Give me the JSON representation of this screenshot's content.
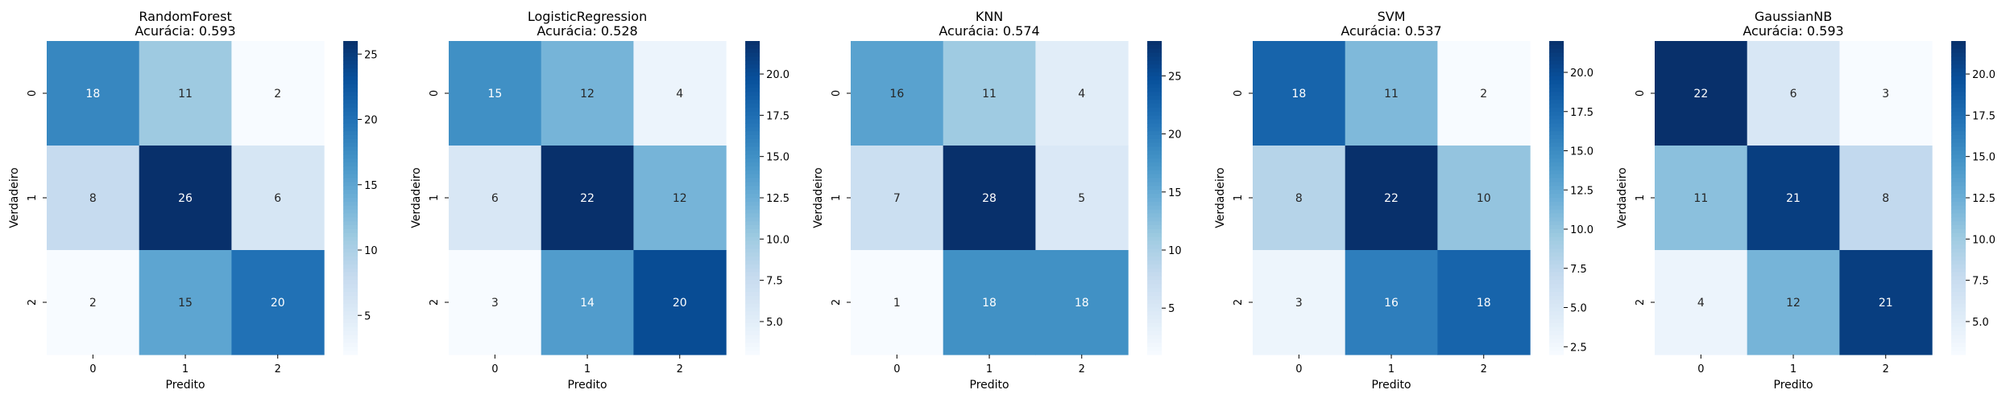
{
  "chart_data": [
    {
      "type": "heatmap",
      "title": "RandomForest",
      "subtitle": "Acurácia: 0.593",
      "xlabel": "Predito",
      "ylabel": "Verdadeiro",
      "x_categories": [
        "0",
        "1",
        "2"
      ],
      "y_categories": [
        "0",
        "1",
        "2"
      ],
      "matrix": [
        [
          18,
          11,
          2
        ],
        [
          8,
          26,
          6
        ],
        [
          2,
          15,
          20
        ]
      ],
      "colormap": "Blues",
      "vmin": 2,
      "vmax": 26,
      "colorbar_ticks": [
        5,
        10,
        15,
        20,
        25
      ],
      "colorbar_tick_labels": [
        "5",
        "10",
        "15",
        "20",
        "25"
      ]
    },
    {
      "type": "heatmap",
      "title": "LogisticRegression",
      "subtitle": "Acurácia: 0.528",
      "xlabel": "Predito",
      "ylabel": "Verdadeiro",
      "x_categories": [
        "0",
        "1",
        "2"
      ],
      "y_categories": [
        "0",
        "1",
        "2"
      ],
      "matrix": [
        [
          15,
          12,
          4
        ],
        [
          6,
          22,
          12
        ],
        [
          3,
          14,
          20
        ]
      ],
      "colormap": "Blues",
      "vmin": 3,
      "vmax": 22,
      "colorbar_ticks": [
        5,
        7.5,
        10,
        12.5,
        15,
        17.5,
        20
      ],
      "colorbar_tick_labels": [
        "5.0",
        "7.5",
        "10.0",
        "12.5",
        "15.0",
        "17.5",
        "20.0"
      ]
    },
    {
      "type": "heatmap",
      "title": "KNN",
      "subtitle": "Acurácia: 0.574",
      "xlabel": "Predito",
      "ylabel": "Verdadeiro",
      "x_categories": [
        "0",
        "1",
        "2"
      ],
      "y_categories": [
        "0",
        "1",
        "2"
      ],
      "matrix": [
        [
          16,
          11,
          4
        ],
        [
          7,
          28,
          5
        ],
        [
          1,
          18,
          18
        ]
      ],
      "colormap": "Blues",
      "vmin": 1,
      "vmax": 28,
      "colorbar_ticks": [
        5,
        10,
        15,
        20,
        25
      ],
      "colorbar_tick_labels": [
        "5",
        "10",
        "15",
        "20",
        "25"
      ]
    },
    {
      "type": "heatmap",
      "title": "SVM",
      "subtitle": "Acurácia: 0.537",
      "xlabel": "Predito",
      "ylabel": "Verdadeiro",
      "x_categories": [
        "0",
        "1",
        "2"
      ],
      "y_categories": [
        "0",
        "1",
        "2"
      ],
      "matrix": [
        [
          18,
          11,
          2
        ],
        [
          8,
          22,
          10
        ],
        [
          3,
          16,
          18
        ]
      ],
      "colormap": "Blues",
      "vmin": 2,
      "vmax": 22,
      "colorbar_ticks": [
        2.5,
        5,
        7.5,
        10,
        12.5,
        15,
        17.5,
        20
      ],
      "colorbar_tick_labels": [
        "2.5",
        "5.0",
        "7.5",
        "10.0",
        "12.5",
        "15.0",
        "17.5",
        "20.0"
      ]
    },
    {
      "type": "heatmap",
      "title": "GaussianNB",
      "subtitle": "Acurácia: 0.593",
      "xlabel": "Predito",
      "ylabel": "Verdadeiro",
      "x_categories": [
        "0",
        "1",
        "2"
      ],
      "y_categories": [
        "0",
        "1",
        "2"
      ],
      "matrix": [
        [
          22,
          6,
          3
        ],
        [
          11,
          21,
          8
        ],
        [
          4,
          12,
          21
        ]
      ],
      "colormap": "Blues",
      "vmin": 3,
      "vmax": 22,
      "colorbar_ticks": [
        5,
        7.5,
        10,
        12.5,
        15,
        17.5,
        20
      ],
      "colorbar_tick_labels": [
        "5.0",
        "7.5",
        "10.0",
        "12.5",
        "15.0",
        "17.5",
        "20.0"
      ]
    }
  ]
}
